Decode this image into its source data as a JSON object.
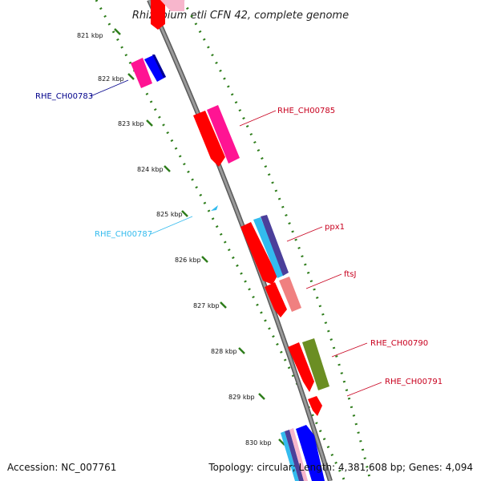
{
  "title": "Rhizobium etli CFN 42, complete genome",
  "footer": {
    "accession": "Accession: NC_007761",
    "summary": "Topology: circular; Length: 4,381,608 bp; Genes: 4,094"
  },
  "colors": {
    "backbone": "#8c8c8c",
    "ticks": "#2e7d1b",
    "forward_label": "#c8001e",
    "reverse_label_dark": "#00008b",
    "reverse_label_light": "#33bbee"
  },
  "ticks": [
    {
      "label": "821 kbp"
    },
    {
      "label": "822 kbp"
    },
    {
      "label": "823 kbp"
    },
    {
      "label": "824 kbp"
    },
    {
      "label": "825 kbp"
    },
    {
      "label": "826 kbp"
    },
    {
      "label": "827 kbp"
    },
    {
      "label": "828 kbp"
    },
    {
      "label": "829 kbp"
    },
    {
      "label": "830 kbp"
    }
  ],
  "gene_labels": [
    {
      "text": "RHE_CH00783",
      "color": "#00008b"
    },
    {
      "text": "RHE_CH00785",
      "color": "#c8001e"
    },
    {
      "text": "RHE_CH00787",
      "color": "#33bbee"
    },
    {
      "text": "ppx1",
      "color": "#c8001e"
    },
    {
      "text": "ftsJ",
      "color": "#c8001e"
    },
    {
      "text": "RHE_CH00790",
      "color": "#c8001e"
    },
    {
      "text": "RHE_CH00791",
      "color": "#c8001e"
    }
  ]
}
